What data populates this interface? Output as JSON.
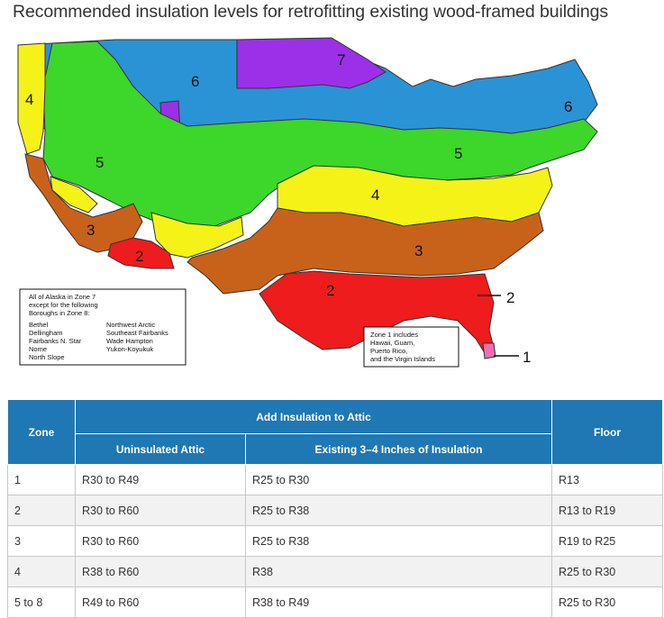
{
  "title": "Recommended insulation levels for retrofitting existing wood-framed buildings",
  "map": {
    "zone_labels": [
      "1",
      "2",
      "2",
      "2",
      "3",
      "3",
      "4",
      "4",
      "5",
      "5",
      "6",
      "6",
      "7"
    ],
    "alaska_note": {
      "lines": [
        "All of Alaska in Zone 7",
        "except for the following",
        "Boroughs in Zone 8:"
      ],
      "col1": [
        "Bethel",
        "Dellingham",
        "Fairbanks N. Star",
        "Nome",
        "North Slope"
      ],
      "col2": [
        "Northwest Arctic",
        "Southeast Fairbanks",
        "Wade Hampton",
        "Yukon-Koyukuk"
      ]
    },
    "zone1_note": [
      "Zone 1 includes",
      "Hawaii, Guam,",
      "Puerto Rico,",
      "and the Virgin Islands"
    ],
    "colors": {
      "zone1": "#f06fb3",
      "zone2": "#ee1c1c",
      "zone3": "#c8621a",
      "zone4": "#f5f218",
      "zone5": "#3dd62a",
      "zone6": "#2a93d5",
      "zone7": "#9b30e8"
    }
  },
  "table": {
    "headers": {
      "zone": "Zone",
      "add_attic": "Add Insulation to Attic",
      "uninsulated": "Uninsulated Attic",
      "existing": "Existing 3–4 Inches of Insulation",
      "floor": "Floor"
    },
    "rows": [
      [
        "1",
        "R30 to R49",
        "R25 to R30",
        "R13"
      ],
      [
        "2",
        "R30 to R60",
        "R25 to R38",
        "R13 to R19"
      ],
      [
        "3",
        "R30 to R60",
        "R25 to R38",
        "R19 to R25"
      ],
      [
        "4",
        "R38 to R60",
        "R38",
        "R25 to R30"
      ],
      [
        "5 to 8",
        "R49 to R60",
        "R38 to R49",
        "R25 to R30"
      ]
    ]
  }
}
